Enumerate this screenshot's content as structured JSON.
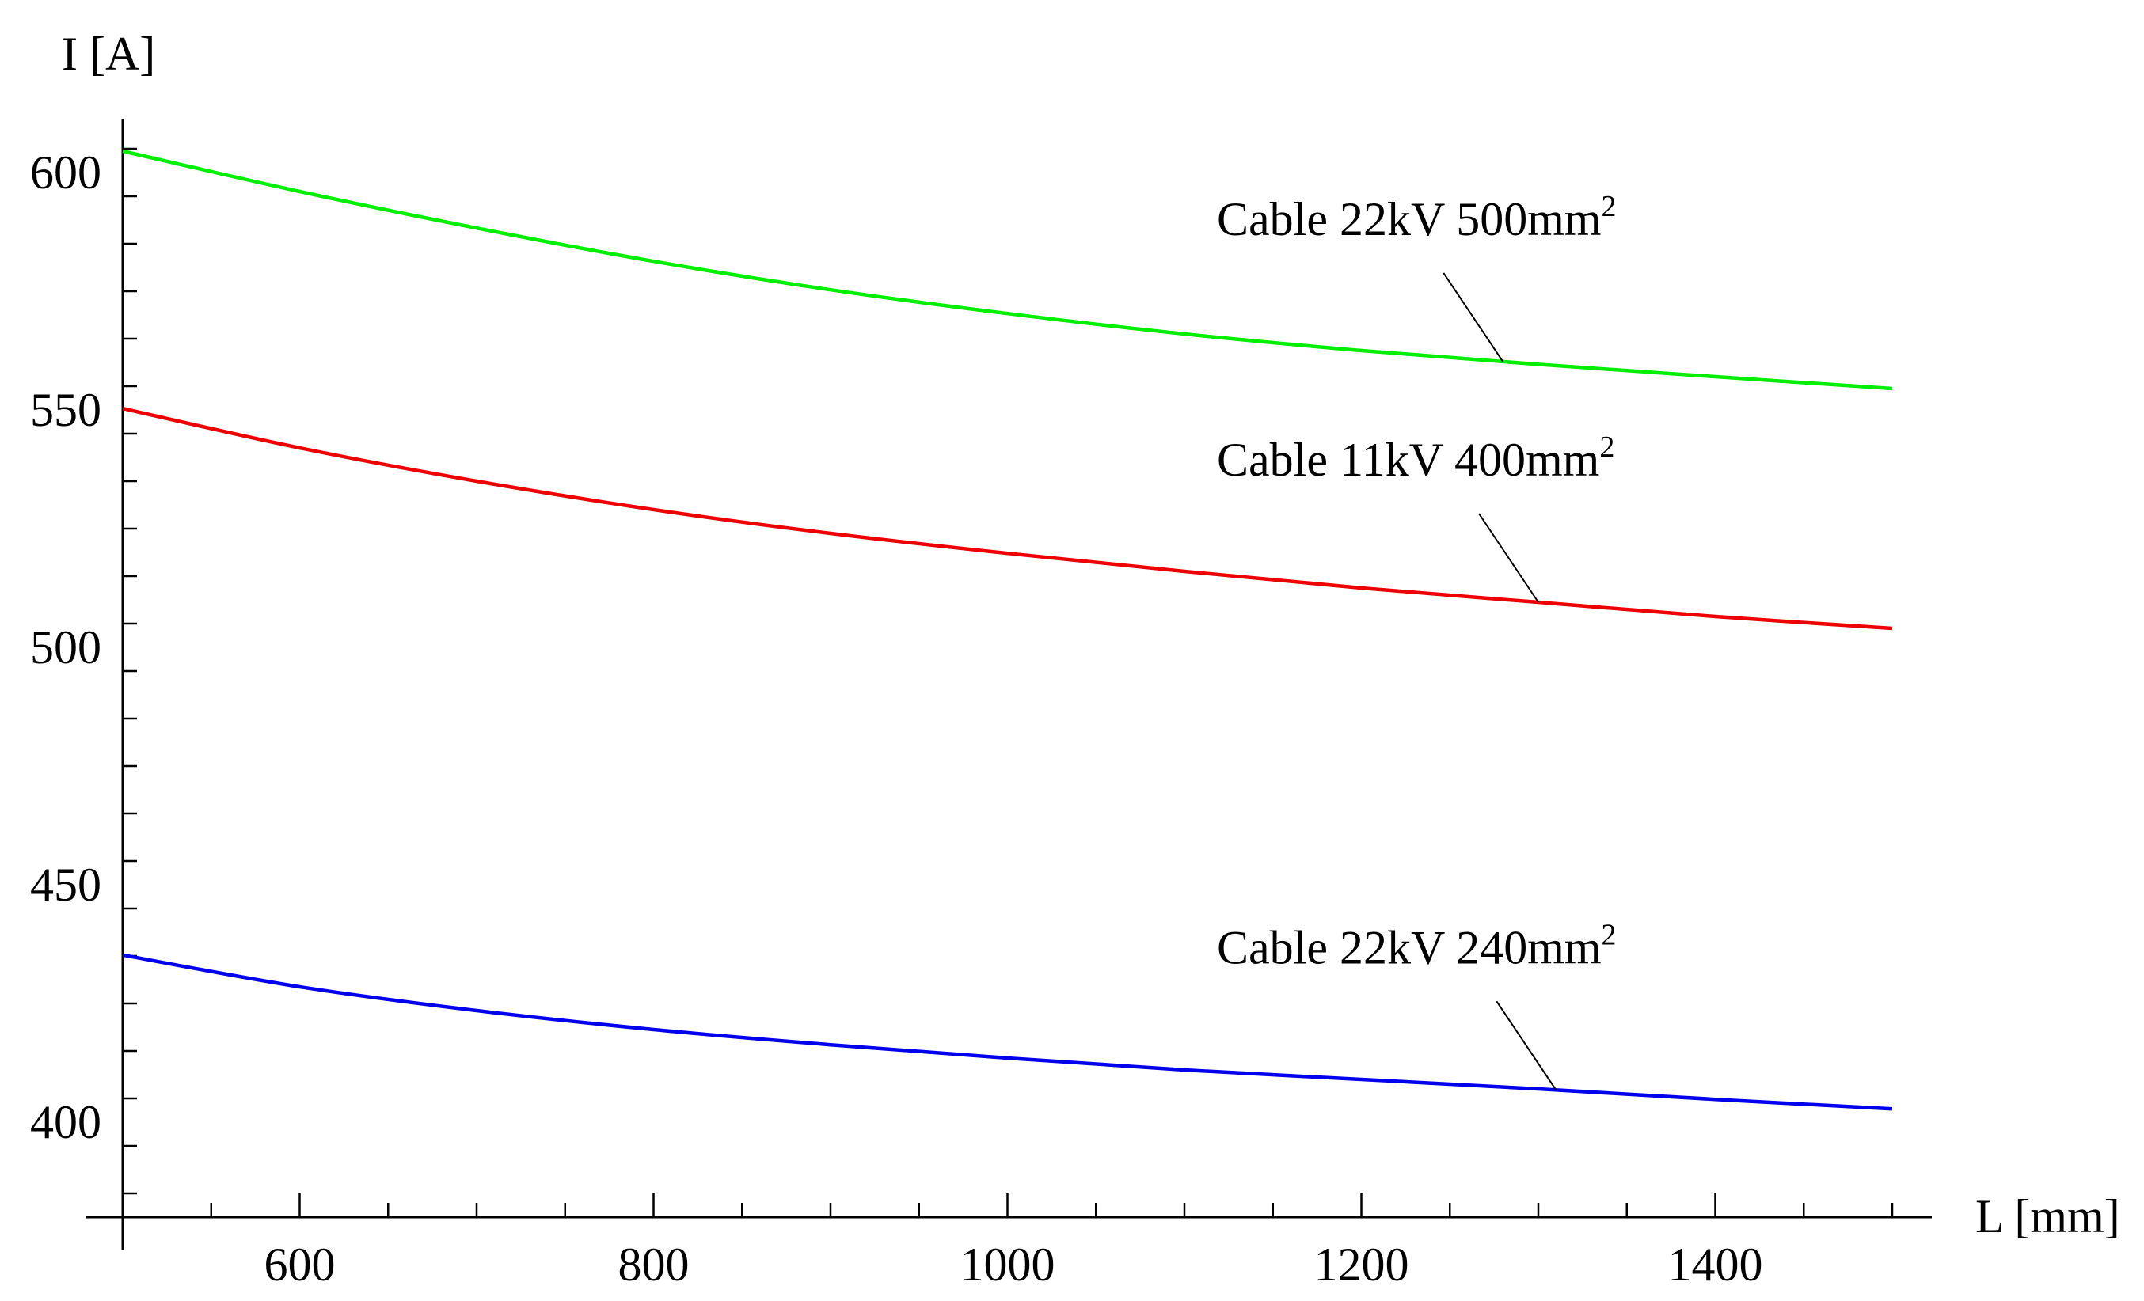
{
  "chart_data": {
    "type": "line",
    "title": "",
    "xlabel": "L [mm]",
    "ylabel": "I [A]",
    "xlim": [
      500,
      1500
    ],
    "ylim": [
      380,
      612
    ],
    "x_ticks": [
      600,
      800,
      1000,
      1200,
      1400
    ],
    "x_tick_labels": [
      "600",
      "800",
      "1000",
      "1200",
      "1400"
    ],
    "y_ticks": [
      400,
      450,
      500,
      550,
      600
    ],
    "y_tick_labels": [
      "400",
      "450",
      "500",
      "550",
      "600"
    ],
    "grid": false,
    "legend": "inline annotations",
    "x": [
      500,
      600,
      700,
      800,
      900,
      1000,
      1100,
      1200,
      1300,
      1400,
      1500
    ],
    "series": [
      {
        "name": "Cable 22kV 500mm2",
        "label_text": "Cable 22kV 500mm",
        "label_sup": "2",
        "color": "#00ee00",
        "values": [
          604.5,
          596.0,
          588.3,
          581.3,
          575.3,
          570.3,
          566.0,
          562.5,
          559.6,
          557.0,
          554.5
        ],
        "label_anchor_x": 1280
      },
      {
        "name": "Cable 11kV 400mm2",
        "label_text": "Cable 11kV 400mm",
        "label_sup": "2",
        "color": "#ee0000",
        "values": [
          550.3,
          542.0,
          535.0,
          529.0,
          524.0,
          519.8,
          516.0,
          512.5,
          509.5,
          506.5,
          504.0
        ],
        "label_anchor_x": 1300
      },
      {
        "name": "Cable 22kV 240mm2",
        "label_text": "Cable 22kV 240mm",
        "label_sup": "2",
        "color": "#0000ee",
        "values": [
          435.2,
          428.5,
          423.5,
          419.5,
          416.3,
          413.5,
          411.0,
          409.0,
          407.0,
          404.8,
          402.8
        ],
        "label_anchor_x": 1310
      }
    ]
  }
}
